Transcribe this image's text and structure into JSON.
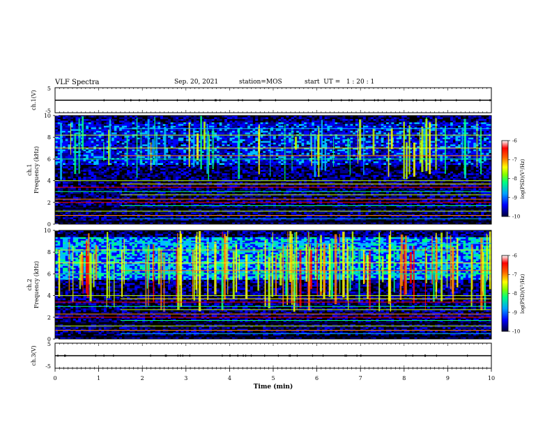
{
  "header": {
    "title": "VLF Spectra",
    "date": "Sep. 20, 2021",
    "station": "station=MOS",
    "start": "start  UT =   1 : 20 : 1"
  },
  "colors": {
    "colormap": [
      "#000000",
      "#00008b",
      "#0000ff",
      "#00c0ff",
      "#00ff80",
      "#c0ff00",
      "#ffff00",
      "#ff8000",
      "#ff0000",
      "#ff80ff",
      "#ffffff"
    ]
  },
  "chart_data": [
    {
      "type": "line",
      "panel": "ch1-waveform",
      "ylabel": "ch.1(V)",
      "ylim": [
        -5,
        5
      ],
      "yticks": [
        "5",
        "-5"
      ],
      "xlim": [
        0,
        10
      ],
      "trace_level": 0
    },
    {
      "type": "heatmap",
      "panel": "ch1-spectrogram",
      "ylabel_channel": "ch.1",
      "ylabel": "Frequency (kHz)",
      "ylim": [
        0,
        10
      ],
      "yticks": [
        "0",
        "2",
        "4",
        "6",
        "8",
        "10"
      ],
      "xlim": [
        0,
        10
      ],
      "colorbar": {
        "label": "log(PSD)(V²/Hz)",
        "ticks": [
          "-6",
          "-7",
          "-8",
          "-9",
          "-10"
        ],
        "range": [
          -10,
          -6
        ]
      }
    },
    {
      "type": "heatmap",
      "panel": "ch2-spectrogram",
      "ylabel_channel": "ch.2",
      "ylabel": "Frequency (kHz)",
      "ylim": [
        0,
        10
      ],
      "yticks": [
        "0",
        "2",
        "4",
        "6",
        "8",
        "10"
      ],
      "xlim": [
        0,
        10
      ],
      "colorbar": {
        "label": "log(PSD)(V²/Hz)",
        "ticks": [
          "-6",
          "-7",
          "-8",
          "-9",
          "-10"
        ],
        "range": [
          -10,
          -6
        ]
      }
    },
    {
      "type": "line",
      "panel": "ch3-waveform",
      "ylabel": "ch.3(V)",
      "ylim": [
        -5,
        5
      ],
      "yticks": [
        "5",
        "-5"
      ],
      "xlim": [
        0,
        10
      ],
      "xlabel": "Time  (min)",
      "xticks": [
        "0",
        "1",
        "2",
        "3",
        "4",
        "5",
        "6",
        "7",
        "8",
        "9",
        "10"
      ],
      "trace_level": 0
    }
  ]
}
